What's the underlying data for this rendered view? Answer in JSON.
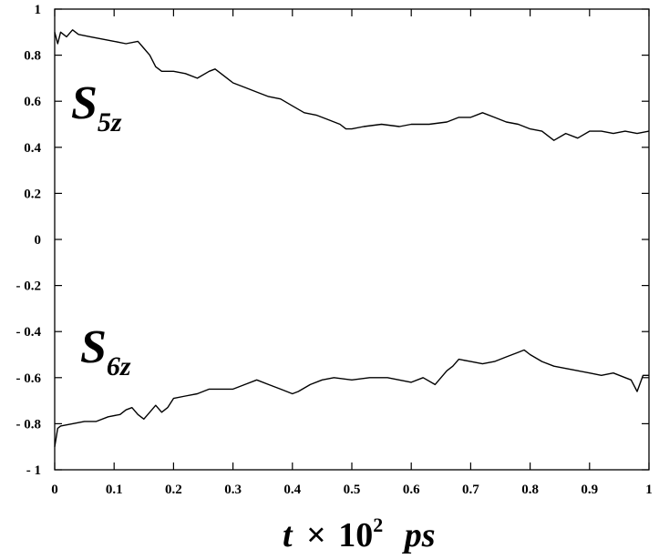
{
  "chart_data": {
    "type": "line",
    "title": "",
    "xlabel": {
      "base": "t",
      "times": "×",
      "num": "10",
      "exp": "2",
      "unit": "ps"
    },
    "ylabel": "",
    "xlim": [
      0,
      1
    ],
    "ylim": [
      -1,
      1
    ],
    "grid": false,
    "x_ticks": [
      "0",
      "0.1",
      "0.2",
      "0.3",
      "0.4",
      "0.5",
      "0.6",
      "0.7",
      "0.8",
      "0.9",
      "1"
    ],
    "y_ticks": [
      "1",
      "0.8",
      "0.6",
      "0.4",
      "0.2",
      "0",
      "- 0.2",
      "- 0.4",
      "- 0.6",
      "- 0.8",
      "- 1"
    ],
    "series": [
      {
        "name": "S5z",
        "label": {
          "main": "S",
          "sub": "5z"
        },
        "color": "#000000",
        "points": [
          [
            0.0,
            0.9
          ],
          [
            0.005,
            0.85
          ],
          [
            0.01,
            0.9
          ],
          [
            0.02,
            0.88
          ],
          [
            0.03,
            0.91
          ],
          [
            0.04,
            0.89
          ],
          [
            0.06,
            0.88
          ],
          [
            0.08,
            0.87
          ],
          [
            0.1,
            0.86
          ],
          [
            0.12,
            0.85
          ],
          [
            0.14,
            0.86
          ],
          [
            0.15,
            0.83
          ],
          [
            0.16,
            0.8
          ],
          [
            0.17,
            0.75
          ],
          [
            0.18,
            0.73
          ],
          [
            0.2,
            0.73
          ],
          [
            0.22,
            0.72
          ],
          [
            0.24,
            0.7
          ],
          [
            0.26,
            0.73
          ],
          [
            0.27,
            0.74
          ],
          [
            0.29,
            0.7
          ],
          [
            0.3,
            0.68
          ],
          [
            0.32,
            0.66
          ],
          [
            0.34,
            0.64
          ],
          [
            0.36,
            0.62
          ],
          [
            0.38,
            0.61
          ],
          [
            0.4,
            0.58
          ],
          [
            0.42,
            0.55
          ],
          [
            0.44,
            0.54
          ],
          [
            0.46,
            0.52
          ],
          [
            0.48,
            0.5
          ],
          [
            0.49,
            0.48
          ],
          [
            0.5,
            0.48
          ],
          [
            0.52,
            0.49
          ],
          [
            0.55,
            0.5
          ],
          [
            0.58,
            0.49
          ],
          [
            0.6,
            0.5
          ],
          [
            0.63,
            0.5
          ],
          [
            0.66,
            0.51
          ],
          [
            0.68,
            0.53
          ],
          [
            0.7,
            0.53
          ],
          [
            0.72,
            0.55
          ],
          [
            0.74,
            0.53
          ],
          [
            0.76,
            0.51
          ],
          [
            0.78,
            0.5
          ],
          [
            0.8,
            0.48
          ],
          [
            0.82,
            0.47
          ],
          [
            0.83,
            0.45
          ],
          [
            0.84,
            0.43
          ],
          [
            0.86,
            0.46
          ],
          [
            0.88,
            0.44
          ],
          [
            0.9,
            0.47
          ],
          [
            0.92,
            0.47
          ],
          [
            0.94,
            0.46
          ],
          [
            0.96,
            0.47
          ],
          [
            0.98,
            0.46
          ],
          [
            1.0,
            0.47
          ]
        ]
      },
      {
        "name": "S6z",
        "label": {
          "main": "S",
          "sub": "6z"
        },
        "color": "#000000",
        "points": [
          [
            0.0,
            -0.9
          ],
          [
            0.005,
            -0.82
          ],
          [
            0.01,
            -0.81
          ],
          [
            0.03,
            -0.8
          ],
          [
            0.05,
            -0.79
          ],
          [
            0.07,
            -0.79
          ],
          [
            0.09,
            -0.77
          ],
          [
            0.11,
            -0.76
          ],
          [
            0.12,
            -0.74
          ],
          [
            0.13,
            -0.73
          ],
          [
            0.14,
            -0.76
          ],
          [
            0.15,
            -0.78
          ],
          [
            0.16,
            -0.75
          ],
          [
            0.17,
            -0.72
          ],
          [
            0.18,
            -0.75
          ],
          [
            0.19,
            -0.73
          ],
          [
            0.2,
            -0.69
          ],
          [
            0.22,
            -0.68
          ],
          [
            0.24,
            -0.67
          ],
          [
            0.26,
            -0.65
          ],
          [
            0.28,
            -0.65
          ],
          [
            0.3,
            -0.65
          ],
          [
            0.32,
            -0.63
          ],
          [
            0.34,
            -0.61
          ],
          [
            0.36,
            -0.63
          ],
          [
            0.38,
            -0.65
          ],
          [
            0.4,
            -0.67
          ],
          [
            0.41,
            -0.66
          ],
          [
            0.43,
            -0.63
          ],
          [
            0.45,
            -0.61
          ],
          [
            0.47,
            -0.6
          ],
          [
            0.5,
            -0.61
          ],
          [
            0.53,
            -0.6
          ],
          [
            0.56,
            -0.6
          ],
          [
            0.6,
            -0.62
          ],
          [
            0.62,
            -0.6
          ],
          [
            0.64,
            -0.63
          ],
          [
            0.65,
            -0.6
          ],
          [
            0.66,
            -0.57
          ],
          [
            0.67,
            -0.55
          ],
          [
            0.68,
            -0.52
          ],
          [
            0.7,
            -0.53
          ],
          [
            0.72,
            -0.54
          ],
          [
            0.74,
            -0.53
          ],
          [
            0.76,
            -0.51
          ],
          [
            0.78,
            -0.49
          ],
          [
            0.79,
            -0.48
          ],
          [
            0.8,
            -0.5
          ],
          [
            0.82,
            -0.53
          ],
          [
            0.84,
            -0.55
          ],
          [
            0.86,
            -0.56
          ],
          [
            0.88,
            -0.57
          ],
          [
            0.9,
            -0.58
          ],
          [
            0.92,
            -0.59
          ],
          [
            0.94,
            -0.58
          ],
          [
            0.96,
            -0.6
          ],
          [
            0.97,
            -0.61
          ],
          [
            0.98,
            -0.66
          ],
          [
            0.99,
            -0.59
          ],
          [
            1.0,
            -0.59
          ]
        ]
      }
    ]
  }
}
